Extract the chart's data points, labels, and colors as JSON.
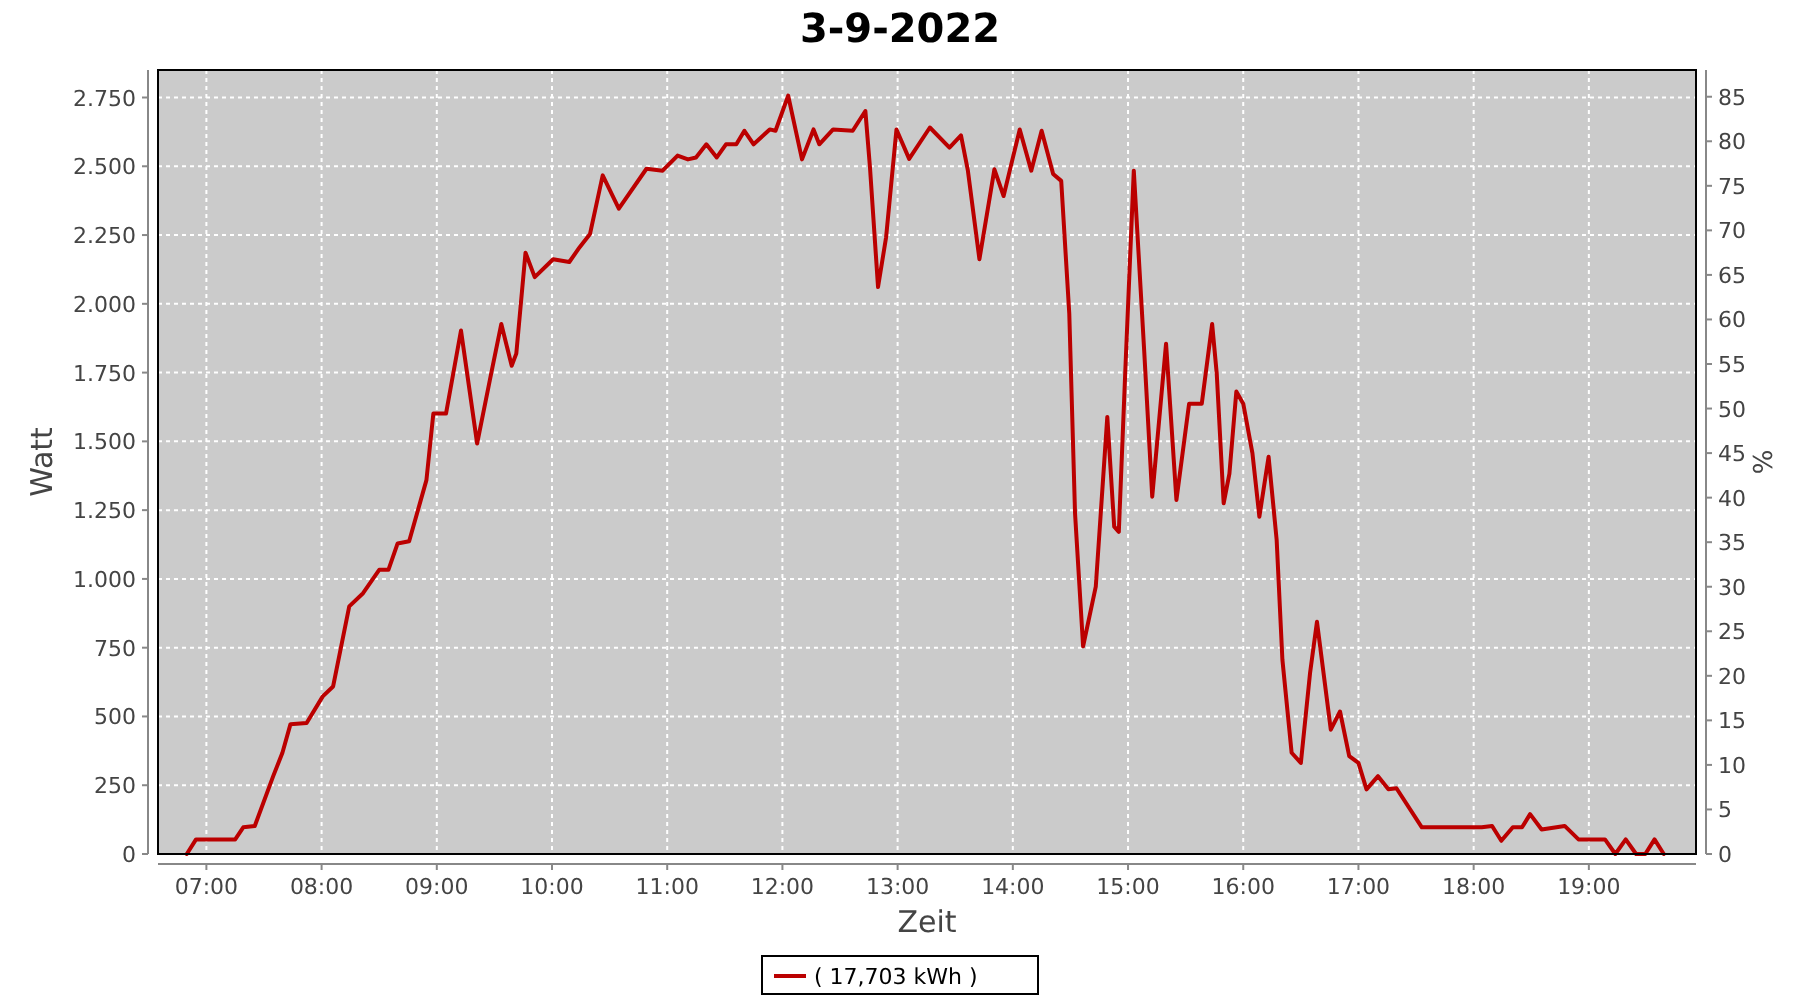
{
  "chart_data": {
    "type": "line",
    "title": "3-9-2022",
    "xlabel": "Zeit",
    "ylabel": "Watt",
    "y2label": "%",
    "xlim": [
      6.58,
      19.93
    ],
    "ylim": [
      0,
      2850
    ],
    "y2lim": [
      0,
      88
    ],
    "xticks": [
      {
        "value": 7,
        "label": "07:00"
      },
      {
        "value": 8,
        "label": "08:00"
      },
      {
        "value": 9,
        "label": "09:00"
      },
      {
        "value": 10,
        "label": "10:00"
      },
      {
        "value": 11,
        "label": "11:00"
      },
      {
        "value": 12,
        "label": "12:00"
      },
      {
        "value": 13,
        "label": "13:00"
      },
      {
        "value": 14,
        "label": "14:00"
      },
      {
        "value": 15,
        "label": "15:00"
      },
      {
        "value": 16,
        "label": "16:00"
      },
      {
        "value": 17,
        "label": "17:00"
      },
      {
        "value": 18,
        "label": "18:00"
      },
      {
        "value": 19,
        "label": "19:00"
      }
    ],
    "yticks": [
      0,
      250,
      500,
      750,
      {
        "value": 1000,
        "label": "1.000"
      },
      {
        "value": 1250,
        "label": "1.250"
      },
      {
        "value": 1500,
        "label": "1.500"
      },
      {
        "value": 1750,
        "label": "1.750"
      },
      {
        "value": 2000,
        "label": "2.000"
      },
      {
        "value": 2250,
        "label": "2.250"
      },
      {
        "value": 2500,
        "label": "2.500"
      },
      {
        "value": 2750,
        "label": "2.750"
      }
    ],
    "y2ticks": [
      0,
      5,
      10,
      15,
      20,
      25,
      30,
      35,
      40,
      45,
      50,
      55,
      60,
      65,
      70,
      75,
      80,
      85
    ],
    "grid": true,
    "legend": "bottom",
    "line_style": "solid",
    "marker": "none",
    "series": [
      {
        "name": "( 17,703 kWh )",
        "color": "#bb0000",
        "x": [
          6.83,
          6.91,
          7.25,
          7.32,
          7.42,
          7.58,
          7.66,
          7.73,
          7.87,
          8.01,
          8.1,
          8.24,
          8.36,
          8.5,
          8.58,
          8.66,
          8.76,
          8.91,
          8.97,
          9.08,
          9.21,
          9.28,
          9.35,
          9.46,
          9.56,
          9.65,
          9.69,
          9.77,
          9.85,
          10.01,
          10.15,
          10.24,
          10.33,
          10.44,
          10.58,
          10.82,
          10.96,
          11.09,
          11.18,
          11.25,
          11.34,
          11.43,
          11.51,
          11.6,
          11.67,
          11.75,
          11.89,
          11.94,
          12.05,
          12.17,
          12.27,
          12.32,
          12.44,
          12.61,
          12.72,
          12.76,
          12.83,
          12.9,
          12.99,
          13.1,
          13.28,
          13.45,
          13.55,
          13.61,
          13.71,
          13.84,
          13.92,
          13.98,
          14.06,
          14.16,
          14.25,
          14.35,
          14.42,
          14.49,
          14.54,
          14.61,
          14.72,
          14.82,
          14.88,
          14.92,
          14.98,
          15.05,
          15.14,
          15.21,
          15.33,
          15.42,
          15.53,
          15.64,
          15.73,
          15.77,
          15.83,
          15.88,
          15.94,
          16.0,
          16.08,
          16.14,
          16.22,
          16.29,
          16.34,
          16.42,
          16.5,
          16.58,
          16.64,
          16.76,
          16.84,
          16.92,
          17.0,
          17.07,
          17.17,
          17.26,
          17.33,
          17.55,
          18.07,
          18.16,
          18.24,
          18.34,
          18.42,
          18.49,
          18.59,
          18.79,
          18.91,
          19.14,
          19.23,
          19.32,
          19.41,
          19.49,
          19.57,
          19.65
        ],
        "values": [
          0,
          53,
          53,
          97,
          102,
          283,
          368,
          472,
          476,
          573,
          609,
          900,
          948,
          1033,
          1033,
          1129,
          1137,
          1359,
          1601,
          1601,
          1903,
          1698,
          1492,
          1722,
          1927,
          1775,
          1819,
          2186,
          2097,
          2162,
          2152,
          2206,
          2254,
          2467,
          2346,
          2491,
          2484,
          2539,
          2525,
          2532,
          2580,
          2532,
          2580,
          2580,
          2629,
          2580,
          2634,
          2629,
          2757,
          2525,
          2634,
          2580,
          2634,
          2629,
          2701,
          2496,
          2061,
          2242,
          2634,
          2527,
          2641,
          2568,
          2612,
          2484,
          2162,
          2489,
          2392,
          2496,
          2634,
          2484,
          2629,
          2472,
          2447,
          1964,
          1238,
          755,
          972,
          1589,
          1190,
          1171,
          1795,
          2484,
          1831,
          1299,
          1855,
          1287,
          1637,
          1637,
          1927,
          1746,
          1275,
          1383,
          1681,
          1637,
          1456,
          1226,
          1444,
          1142,
          706,
          368,
          331,
          658,
          844,
          452,
          518,
          356,
          331,
          235,
          283,
          235,
          239,
          97,
          97,
          102,
          48,
          97,
          97,
          145,
          89,
          102,
          53,
          53,
          0,
          53,
          0,
          0,
          53,
          0
        ]
      }
    ]
  }
}
